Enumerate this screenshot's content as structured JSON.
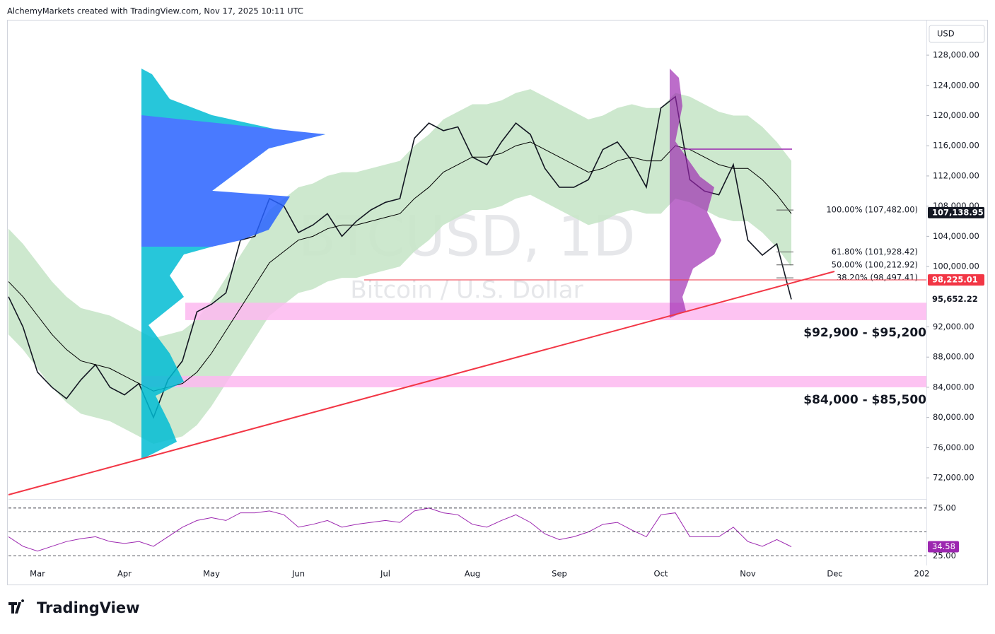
{
  "header": {
    "attribution": "AlchemyMarkets created with TradingView.com, Nov 17, 2025 10:11 UTC"
  },
  "footer": {
    "brand": "TradingView"
  },
  "chart_data": {
    "type": "line",
    "watermark": {
      "symbol": "BTCUSD, 1D",
      "description": "Bitcoin / U.S. Dollar"
    },
    "currency": "USD",
    "categories": [
      null,
      null,
      "Mar",
      null,
      null,
      null,
      null,
      null,
      "Apr",
      null,
      null,
      null,
      null,
      null,
      "May",
      null,
      null,
      null,
      null,
      null,
      "Jun",
      null,
      null,
      null,
      null,
      null,
      "Jul",
      null,
      null,
      null,
      null,
      null,
      "Aug",
      null,
      null,
      null,
      null,
      null,
      "Sep",
      null,
      null,
      null,
      null,
      null,
      null,
      "Oct",
      null,
      null,
      null,
      null,
      null,
      "Nov",
      null,
      null,
      null,
      null,
      null,
      "Dec",
      null,
      null,
      null,
      null,
      null,
      "202"
    ],
    "series": [
      {
        "color": "#131722",
        "values": [
          96000,
          92000,
          86000,
          84000,
          82500,
          85000,
          87000,
          84000,
          83000,
          84500,
          80000,
          85000,
          87500,
          94000,
          95000,
          96500,
          103500,
          104000,
          109000,
          108000,
          104500,
          105500,
          107000,
          104000,
          106000,
          107500,
          108500,
          109000,
          117000,
          119000,
          118000,
          118500,
          114500,
          113500,
          116500,
          119000,
          117500,
          113000,
          110500,
          110500,
          111500,
          115500,
          116500,
          114000,
          110500,
          121000,
          122500,
          111500,
          110000,
          109500,
          113500,
          103500,
          101500,
          103000,
          95652.22,
          null,
          null,
          null,
          null,
          null,
          null,
          null,
          null,
          null
        ]
      },
      {
        "color": "#000000",
        "values": [
          98000,
          96000,
          93500,
          91000,
          89000,
          87500,
          87000,
          86500,
          85500,
          84500,
          83500,
          84000,
          84500,
          86000,
          88500,
          91500,
          94500,
          97500,
          100500,
          102000,
          103500,
          104000,
          105000,
          105500,
          105500,
          106000,
          106500,
          107000,
          109000,
          110500,
          112500,
          113500,
          114500,
          114500,
          115000,
          116000,
          116500,
          115500,
          114500,
          113500,
          112500,
          113000,
          114000,
          114500,
          114000,
          114000,
          116000,
          115500,
          114500,
          113500,
          113000,
          113000,
          111500,
          109500,
          107000,
          null,
          null,
          null,
          null,
          null,
          null,
          null,
          null,
          null
        ]
      },
      {
        "color": "#9c27b0",
        "axis": "y2",
        "values": [
          45,
          35,
          30,
          35,
          40,
          43,
          45,
          40,
          38,
          40,
          35,
          45,
          55,
          62,
          65,
          62,
          70,
          70,
          72,
          68,
          55,
          58,
          62,
          55,
          58,
          60,
          62,
          60,
          72,
          75,
          70,
          68,
          58,
          55,
          62,
          68,
          60,
          48,
          42,
          45,
          50,
          58,
          60,
          52,
          45,
          68,
          70,
          45,
          45,
          45,
          55,
          40,
          35,
          42,
          34.58,
          null,
          null,
          null,
          null,
          null,
          null,
          null,
          null,
          null
        ]
      }
    ],
    "band": {
      "color": "#c8e6c9",
      "upper": [
        105000,
        103000,
        100500,
        98000,
        96000,
        94500,
        94000,
        93500,
        92500,
        91500,
        90500,
        91000,
        91500,
        93000,
        95500,
        98500,
        101500,
        104500,
        107500,
        109000,
        110500,
        111000,
        112000,
        112500,
        112500,
        113000,
        113500,
        114000,
        116000,
        117500,
        119500,
        120500,
        121500,
        121500,
        122000,
        123000,
        123500,
        122500,
        121500,
        120500,
        119500,
        120000,
        121000,
        121500,
        121000,
        121000,
        123000,
        122500,
        121500,
        120500,
        120000,
        120000,
        118500,
        116500,
        114000,
        null,
        null,
        null,
        null,
        null,
        null,
        null,
        null,
        null
      ],
      "lower": [
        91000,
        89000,
        86500,
        84000,
        82000,
        80500,
        80000,
        79500,
        78500,
        77500,
        76500,
        77000,
        77500,
        79000,
        81500,
        84500,
        87500,
        90500,
        93500,
        95000,
        96500,
        97000,
        98000,
        98500,
        98500,
        99000,
        99500,
        100000,
        102000,
        103500,
        105500,
        106500,
        107500,
        107500,
        108000,
        109000,
        109500,
        108500,
        107500,
        106500,
        105500,
        106000,
        107000,
        107500,
        107000,
        107000,
        109000,
        108500,
        107500,
        106500,
        106000,
        106000,
        104500,
        102500,
        100000,
        null,
        null,
        null,
        null,
        null,
        null,
        null,
        null,
        null
      ]
    },
    "ylim": [
      69200,
      132500
    ],
    "yticks": [
      {
        "value": 72000,
        "label": "72,000.00"
      },
      {
        "value": 76000,
        "label": "76,000.00"
      },
      {
        "value": 80000,
        "label": "80,000.00"
      },
      {
        "value": 84000,
        "label": "84,000.00"
      },
      {
        "value": 88000,
        "label": "88,000.00"
      },
      {
        "value": 92000,
        "label": "92,000.00"
      },
      {
        "value": 100000,
        "label": "100,000.00"
      },
      {
        "value": 104000,
        "label": "104,000.00"
      },
      {
        "value": 108000,
        "label": "108,000.00"
      },
      {
        "value": 112000,
        "label": "112,000.00"
      },
      {
        "value": 116000,
        "label": "116,000.00"
      },
      {
        "value": 120000,
        "label": "120,000.00"
      },
      {
        "value": 124000,
        "label": "124,000.00"
      },
      {
        "value": 128000,
        "label": "128,000.00"
      }
    ],
    "y2lim": [
      15,
      83
    ],
    "y2ticks": [
      {
        "value": 75,
        "label": "75.00"
      },
      {
        "value": 25,
        "label": "25.00"
      }
    ],
    "y2_levels": [
      75,
      50,
      25
    ],
    "zones": [
      {
        "label": "$92,900 - $95,200",
        "low": 92900,
        "high": 95200,
        "color": "#fdb9f0"
      },
      {
        "label": "$84,000 - $85,500",
        "low": 84000,
        "high": 85500,
        "color": "#fdb9f0"
      }
    ],
    "fib_levels": [
      {
        "value": 107482,
        "label": "100.00% (107,482.00)"
      },
      {
        "value": 101928.42,
        "label": "61.80% (101,928.42)"
      },
      {
        "value": 100212.92,
        "label": "50.00% (100,212.92)"
      },
      {
        "value": 98497.41,
        "label": "38.20% (98,497.41)"
      }
    ],
    "price_tags": [
      {
        "value": 107138.95,
        "label": "107,138.95",
        "color": "#131722"
      },
      {
        "value": 98225.01,
        "label": "98,225.01",
        "color": "#f23645"
      },
      {
        "value": 95652.22,
        "label": "95,652.22",
        "color": "#ffffff"
      }
    ],
    "y2_tag": {
      "value": 34.58,
      "label": "34.58",
      "color": "#9c27b0"
    }
  }
}
